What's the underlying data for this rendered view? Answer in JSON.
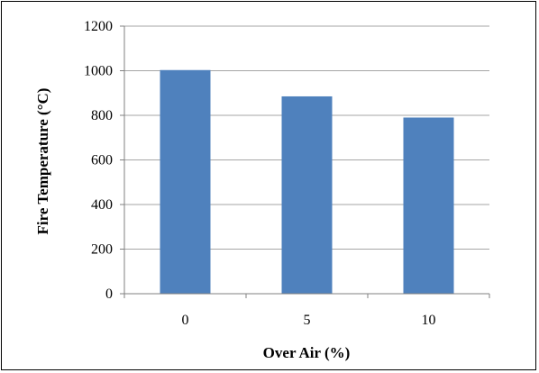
{
  "chart_data": {
    "type": "bar",
    "categories": [
      "0",
      "5",
      "10"
    ],
    "values": [
      1003,
      885,
      790
    ],
    "xlabel": "Over Air (%)",
    "ylabel": "Fire Temperature (°C)",
    "ylim": [
      0,
      1200
    ],
    "yticks": [
      0,
      200,
      400,
      600,
      800,
      1000,
      1200
    ],
    "grid": "horizontal",
    "bar_color": "#4F81BD",
    "gridline_color": "#A6A6A6"
  }
}
